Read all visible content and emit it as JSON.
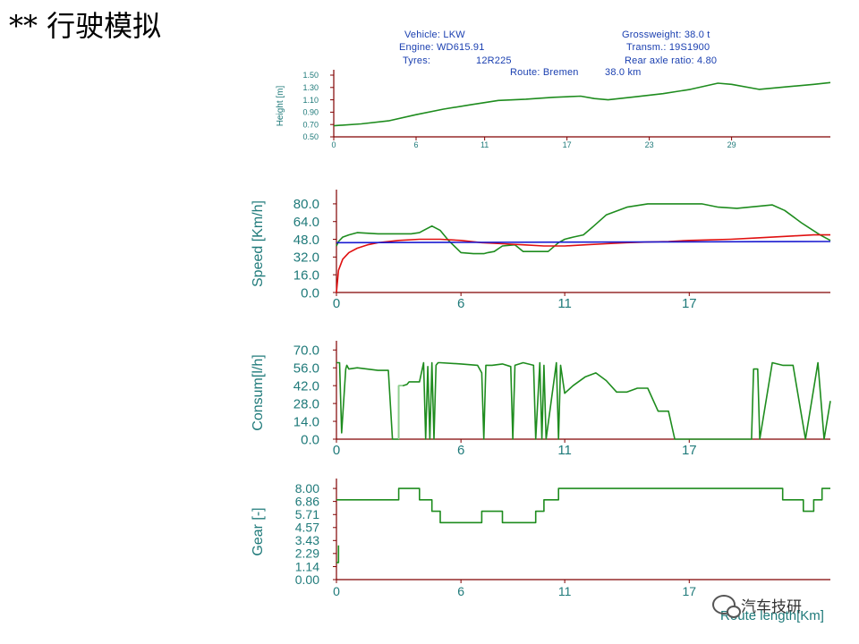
{
  "slide": {
    "title": "** 行驶模拟"
  },
  "info": {
    "vehicle": "Vehicle: LKW",
    "engine": "Engine: WD615.91",
    "tyres_label": "Tyres:",
    "tyres_value": "12R225",
    "gross_weight": "Grossweight: 38.0 t",
    "transmission": "Transm.: 19S1900",
    "rear_axle": "Rear axle ratio: 4.80",
    "route": "Route: Bremen",
    "route_length": "38.0 km"
  },
  "watermark": {
    "text": "汽车技研"
  },
  "colors": {
    "axis": "#800000",
    "label": "#1f7a7a",
    "green": "#1e8c1e",
    "red": "#e01010",
    "blue": "#1a1ad0"
  },
  "chart_data": [
    {
      "id": "height",
      "type": "line",
      "ylabel": "Height [m]",
      "xlabel": "",
      "ylim": [
        0.5,
        1.5
      ],
      "yticks": [
        "1.50",
        "1.30",
        "1.10",
        "0.90",
        "0.70",
        "0.50"
      ],
      "xlim": [
        0,
        36.2
      ],
      "xticks": [
        "0",
        "6",
        "11",
        "17",
        "23",
        "29"
      ],
      "series": [
        {
          "color": "#1e8c1e",
          "x": [
            0,
            2,
            4,
            6,
            8,
            10,
            12,
            14,
            16,
            18,
            19,
            20,
            22,
            24,
            26,
            28,
            29,
            31,
            33,
            35,
            36.2
          ],
          "y": [
            0.68,
            0.71,
            0.76,
            0.86,
            0.95,
            1.02,
            1.09,
            1.11,
            1.14,
            1.16,
            1.12,
            1.1,
            1.15,
            1.2,
            1.27,
            1.37,
            1.35,
            1.27,
            1.31,
            1.35,
            1.38
          ]
        }
      ]
    },
    {
      "id": "speed",
      "type": "line",
      "ylabel": "Speed [Km/h]",
      "xlabel": "",
      "ylim": [
        0,
        88
      ],
      "yticks": [
        "80.0",
        "64.0",
        "48.0",
        "32.0",
        "16.0",
        "0.0"
      ],
      "ytick_values": [
        80,
        64,
        48,
        32,
        16,
        0
      ],
      "xlim": [
        0,
        23.8
      ],
      "xticks": [
        "0",
        "6",
        "11",
        "17"
      ],
      "xtick_values": [
        0,
        6,
        11,
        17
      ],
      "series": [
        {
          "color": "#1e8c1e",
          "x": [
            0,
            0.1,
            0.3,
            0.6,
            1.0,
            2.0,
            3.0,
            3.6,
            4.0,
            4.2,
            4.6,
            5.0,
            5.4,
            6.0,
            6.6,
            7.1,
            7.3,
            7.6,
            8.0,
            8.6,
            9.0,
            9.3,
            9.7,
            10.2,
            10.7,
            11.0,
            11.4,
            11.9,
            12.4,
            13.0,
            14.0,
            15.0,
            16.0,
            16.8,
            17.6,
            18.4,
            19.3,
            19.9,
            20.4,
            21.0,
            21.6,
            22.4,
            23.3,
            23.8
          ],
          "y": [
            42,
            46,
            50,
            52,
            54,
            53,
            53,
            53,
            54,
            56,
            60,
            56,
            47,
            36,
            35,
            35,
            36,
            37,
            42,
            43,
            37,
            37,
            37,
            37,
            45,
            48,
            50,
            52,
            60,
            70,
            77,
            80,
            80,
            80,
            80,
            77,
            76,
            77,
            78,
            79,
            74,
            63,
            52,
            47
          ]
        },
        {
          "color": "#e01010",
          "x": [
            0,
            0.1,
            0.3,
            0.6,
            1.0,
            1.5,
            2.0,
            3.0,
            4.0,
            5.0,
            6.0,
            7.0,
            8.0,
            9.0,
            10.0,
            11.0,
            12.0,
            13.0,
            14.0,
            15.0,
            16.0,
            17.0,
            18.0,
            19.0,
            20.0,
            21.0,
            22.0,
            23.0,
            23.8
          ],
          "y": [
            0,
            20,
            30,
            36,
            40,
            43,
            45,
            47,
            48,
            48,
            47,
            45,
            44,
            43,
            42,
            42,
            43,
            44,
            45,
            45.5,
            46,
            47,
            47.5,
            48,
            49,
            50,
            51,
            52,
            52
          ]
        },
        {
          "color": "#1a1ad0",
          "x": [
            0,
            23.8
          ],
          "y": [
            45,
            46
          ]
        }
      ]
    },
    {
      "id": "consum",
      "type": "line",
      "ylabel": "Consum[l/h]",
      "xlabel": "",
      "ylim": [
        0,
        73
      ],
      "yticks": [
        "70.0",
        "56.0",
        "42.0",
        "28.0",
        "14.0",
        "0.0"
      ],
      "ytick_values": [
        70,
        56,
        42,
        28,
        14,
        0
      ],
      "xlim": [
        0,
        23.8
      ],
      "xticks": [
        "0",
        "6",
        "11",
        "17"
      ],
      "xtick_values": [
        0,
        6,
        11,
        17
      ],
      "series": [
        {
          "color": "#1e8c1e",
          "x": [
            0,
            0.15,
            0.25,
            0.45,
            0.5,
            0.6,
            1.0,
            2.0,
            2.5,
            2.7,
            3.0,
            3.0,
            3.2,
            3.4,
            3.5,
            4.0,
            4.2,
            4.3,
            4.4,
            4.5,
            4.6,
            4.7,
            4.8,
            4.9,
            5.0,
            6.0,
            6.8,
            7.0,
            7.1,
            7.2,
            7.5,
            8.0,
            8.4,
            8.5,
            8.6,
            9.0,
            9.5,
            9.6,
            9.8,
            9.9,
            10.0,
            10.1,
            10.6,
            10.7,
            10.8,
            11.0,
            11.4,
            12.0,
            12.5,
            13.0,
            13.5,
            14.0,
            14.5,
            15.0,
            15.5,
            16.0,
            16.3,
            17.0,
            18.0,
            19.0,
            20.0,
            20.1,
            20.3,
            20.4,
            21.0,
            21.5,
            22.0,
            22.6,
            23.2,
            23.5,
            23.8
          ],
          "y": [
            60,
            60,
            5,
            55,
            58,
            55,
            56,
            54,
            54,
            0,
            0,
            42,
            42,
            43,
            45,
            45,
            60,
            0,
            57,
            0,
            60,
            0,
            58,
            60,
            60,
            59,
            58,
            52,
            0,
            58,
            58,
            59,
            57,
            0,
            58,
            60,
            58,
            0,
            60,
            0,
            58,
            0,
            60,
            0,
            58,
            36,
            42,
            49,
            52,
            46,
            37,
            37,
            40,
            40,
            22,
            22,
            0,
            0,
            0,
            0,
            0,
            55,
            55,
            0,
            60,
            58,
            58,
            0,
            60,
            0,
            30
          ]
        },
        {
          "color": "#8fd08f",
          "x": [
            3.0,
            3.0,
            3.2
          ],
          "y": [
            0,
            42,
            42
          ]
        }
      ]
    },
    {
      "id": "gear",
      "type": "line",
      "ylabel": "Gear  [-]",
      "xlabel": "Route length[Km]",
      "ylim": [
        0,
        8.4
      ],
      "yticks": [
        "8.00",
        "6.86",
        "5.71",
        "4.57",
        "3.43",
        "2.29",
        "1.14",
        "0.00"
      ],
      "ytick_values": [
        8,
        6.86,
        5.71,
        4.57,
        3.43,
        2.29,
        1.14,
        0
      ],
      "xlim": [
        0,
        23.8
      ],
      "xticks": [
        "0",
        "6",
        "11",
        "17"
      ],
      "xtick_values": [
        0,
        6,
        11,
        17
      ],
      "series": [
        {
          "color": "#1e8c1e",
          "x": [
            0,
            0.2,
            3.0,
            3.0,
            4.0,
            4.0,
            4.6,
            4.6,
            5.0,
            5.0,
            7.0,
            7.0,
            8.0,
            8.0,
            9.6,
            9.6,
            10.0,
            10.0,
            10.7,
            10.7,
            11.0,
            11.0,
            16.0,
            21.5,
            21.5,
            22.5,
            22.5,
            23.0,
            23.0,
            23.4,
            23.4,
            23.8
          ],
          "y": [
            7,
            7,
            7,
            8,
            8,
            7,
            7,
            6,
            6,
            5,
            5,
            6,
            6,
            5,
            5,
            6,
            6,
            7,
            7,
            8,
            8,
            8,
            8,
            8,
            7,
            7,
            6,
            6,
            7,
            7,
            8,
            8
          ]
        },
        {
          "color": "#1e8c1e",
          "x": [
            0,
            0.1,
            0.1
          ],
          "y": [
            1.5,
            1.5,
            3.0
          ]
        }
      ]
    }
  ]
}
